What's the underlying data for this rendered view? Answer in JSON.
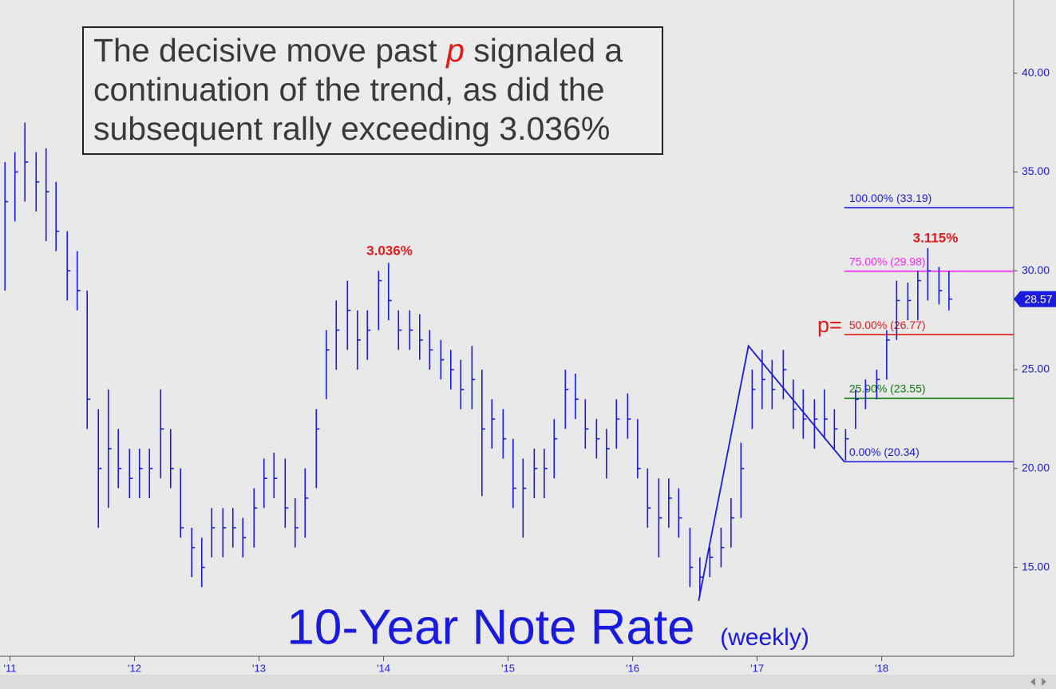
{
  "chart_data": {
    "type": "ohlc",
    "title": "10-Year Note Rate",
    "subtitle": "(weekly)",
    "color": "#1a1adc",
    "x": [
      2010.96,
      2011.04,
      2011.12,
      2011.21,
      2011.29,
      2011.37,
      2011.46,
      2011.54,
      2011.62,
      2011.71,
      2011.79,
      2011.87,
      2011.96,
      2012.04,
      2012.12,
      2012.21,
      2012.29,
      2012.37,
      2012.46,
      2012.54,
      2012.62,
      2012.71,
      2012.79,
      2012.87,
      2012.96,
      2013.04,
      2013.12,
      2013.21,
      2013.29,
      2013.37,
      2013.46,
      2013.54,
      2013.62,
      2013.71,
      2013.79,
      2013.87,
      2013.96,
      2014.04,
      2014.12,
      2014.21,
      2014.29,
      2014.37,
      2014.46,
      2014.54,
      2014.62,
      2014.71,
      2014.79,
      2014.87,
      2014.96,
      2015.04,
      2015.12,
      2015.21,
      2015.29,
      2015.37,
      2015.46,
      2015.54,
      2015.62,
      2015.71,
      2015.79,
      2015.87,
      2015.96,
      2016.04,
      2016.12,
      2016.21,
      2016.29,
      2016.37,
      2016.46,
      2016.54,
      2016.62,
      2016.71,
      2016.79,
      2016.87,
      2016.96,
      2017.04,
      2017.12,
      2017.21,
      2017.29,
      2017.37,
      2017.46,
      2017.54,
      2017.62,
      2017.71,
      2017.79,
      2017.87,
      2017.96,
      2018.04,
      2018.12,
      2018.21,
      2018.29,
      2018.37,
      2018.46,
      2018.54
    ],
    "high": [
      35.5,
      36,
      37.5,
      36,
      36.2,
      34.5,
      32,
      31,
      29,
      23,
      24,
      22,
      21,
      21,
      21,
      24,
      22,
      20,
      17,
      16.5,
      18,
      18,
      18,
      17.5,
      19,
      20.5,
      20.8,
      20.5,
      18.5,
      20,
      23,
      27,
      28.5,
      29.5,
      28,
      28,
      30,
      30.4,
      28,
      28,
      27.8,
      27,
      26.5,
      26,
      25.5,
      26.2,
      25,
      23.5,
      23,
      21.5,
      20.5,
      21,
      21,
      22.5,
      25,
      24.8,
      23.5,
      22.5,
      22,
      23.5,
      23.8,
      22.5,
      20,
      19.5,
      19.5,
      19,
      17,
      15.5,
      16,
      17,
      18.5,
      21.3,
      25,
      26,
      25.5,
      26,
      24.5,
      24,
      23.5,
      24,
      23,
      22,
      24,
      24.5,
      25,
      27,
      29.5,
      29.4,
      30,
      31.15,
      30.2,
      30
    ],
    "low": [
      29,
      32.5,
      33.5,
      33,
      31.5,
      31,
      28.5,
      28,
      22,
      17,
      18,
      19,
      18.5,
      18.5,
      18.5,
      19.5,
      19,
      16.5,
      14.5,
      14,
      15.5,
      15.5,
      16,
      15.5,
      16,
      18,
      18.5,
      17,
      16,
      16.5,
      19,
      23.5,
      25,
      26,
      25,
      25.5,
      27,
      27.5,
      26,
      26,
      25.5,
      25,
      24.5,
      24,
      23,
      23,
      18.6,
      21,
      20.5,
      18,
      16.5,
      18.5,
      18.5,
      19.5,
      22,
      22.5,
      21,
      20.5,
      19.5,
      21,
      21.5,
      19.5,
      17,
      15.5,
      17,
      16.5,
      14,
      13.5,
      14.5,
      15,
      16,
      17.5,
      22,
      23,
      23,
      23.5,
      22,
      21.5,
      21,
      21.5,
      21,
      20.4,
      22,
      23,
      23.5,
      24.5,
      26.5,
      27.5,
      27.5,
      28.5,
      28.3,
      28
    ],
    "close": [
      33.5,
      35,
      35.5,
      34.5,
      34,
      32,
      30,
      29,
      23.5,
      20,
      21,
      20,
      19.5,
      20,
      20,
      22,
      20,
      17,
      16,
      15,
      17,
      17,
      17,
      16.5,
      18,
      19.5,
      19.5,
      18,
      17,
      18.5,
      22,
      26,
      27,
      28,
      26.5,
      27,
      29.5,
      28.5,
      27,
      27,
      26.5,
      26,
      25.5,
      25,
      24,
      24.5,
      22,
      22.5,
      21.5,
      19,
      19,
      20,
      20,
      21.5,
      24,
      23.5,
      22,
      21.5,
      21,
      22.5,
      22.5,
      20,
      18,
      17.5,
      18.5,
      17.5,
      15,
      14.5,
      15.5,
      16,
      17.5,
      20,
      24,
      24.5,
      24,
      25,
      23,
      22.5,
      22.5,
      22.5,
      22,
      21.5,
      23.5,
      24,
      24.5,
      26.5,
      28.5,
      28.5,
      29.5,
      30,
      29,
      28.57
    ],
    "xlim": [
      2010.92,
      2019.06
    ],
    "xticks": [
      {
        "value": 2011,
        "label": "'11"
      },
      {
        "value": 2012,
        "label": "'12"
      },
      {
        "value": 2013,
        "label": "'13"
      },
      {
        "value": 2014,
        "label": "'14"
      },
      {
        "value": 2015,
        "label": "'15"
      },
      {
        "value": 2016,
        "label": "'16"
      },
      {
        "value": 2017,
        "label": "'17"
      },
      {
        "value": 2018,
        "label": "'18"
      }
    ],
    "ylim": [
      10.5,
      43.7
    ],
    "yticks": [
      {
        "value": 15,
        "label": "15.00"
      },
      {
        "value": 20,
        "label": "20.00"
      },
      {
        "value": 25,
        "label": "25.00"
      },
      {
        "value": 30,
        "label": "30.00"
      },
      {
        "value": 35,
        "label": "35.00"
      },
      {
        "value": 40,
        "label": "40.00"
      }
    ],
    "levels": [
      {
        "value": 33.19,
        "label": "100.00% (33.19)",
        "color": "#1a1adc"
      },
      {
        "value": 29.98,
        "label": "75.00% (29.98)",
        "color": "#ff22ff"
      },
      {
        "value": 26.77,
        "label": "50.00% (26.77)",
        "color": "#e01b1b"
      },
      {
        "value": 23.55,
        "label": "25.00% (23.55)",
        "color": "#0a7a0a"
      },
      {
        "value": 20.34,
        "label": "0.00% (20.34)",
        "color": "#1a1adc"
      }
    ],
    "levels_start": 2017.7,
    "trend_line": {
      "x": [
        2016.53,
        2016.93,
        2017.7
      ],
      "y": [
        13.3,
        26.2,
        20.34
      ]
    },
    "annotations": [
      "3.036%",
      "3.115%",
      "p="
    ],
    "note": [
      "The decisive move past ",
      "p",
      " signaled a continuation of the trend, as did the subsequent rally exceeding 3.036%"
    ]
  }
}
